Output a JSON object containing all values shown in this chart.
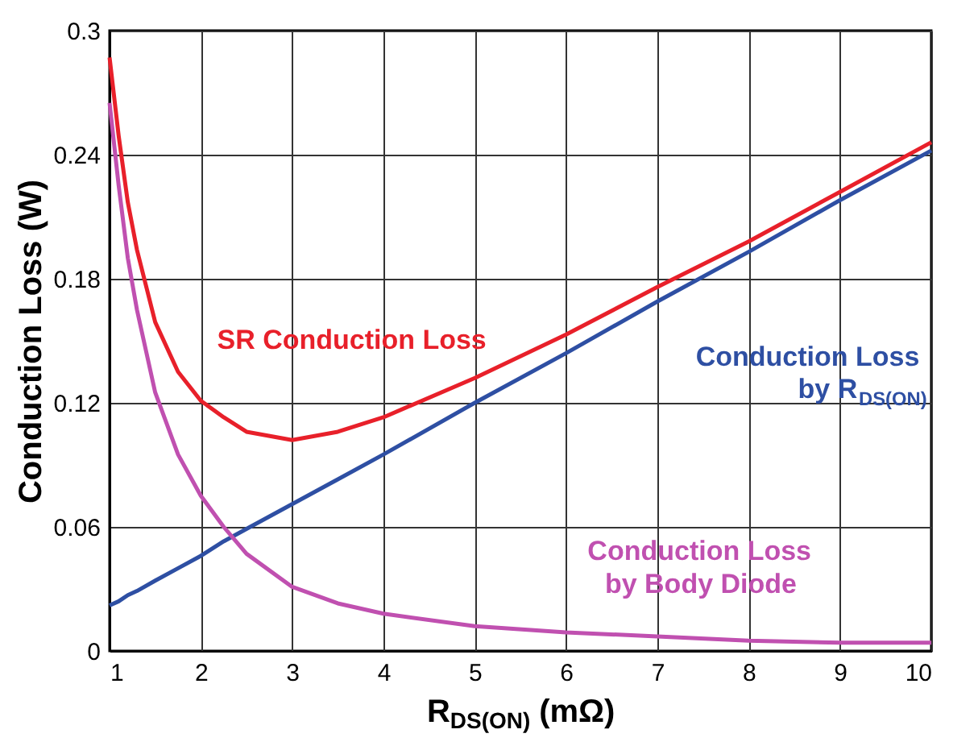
{
  "chart_data": {
    "type": "line",
    "xlabel": "R$_{DS(ON)}$ (mΩ)",
    "ylabel": "Conduction Loss (W)",
    "x": [
      1,
      1.1,
      1.2,
      1.3,
      1.5,
      1.75,
      2,
      2.25,
      2.5,
      3,
      3.5,
      4,
      5,
      6,
      7,
      8,
      9,
      10
    ],
    "series": [
      {
        "name": "SR Conduction Loss",
        "color": "#e8202a",
        "values": [
          0.287,
          0.249,
          0.217,
          0.194,
          0.159,
          0.135,
          0.121,
          0.113,
          0.106,
          0.102,
          0.106,
          0.113,
          0.132,
          0.153,
          0.176,
          0.198,
          0.222,
          0.246
        ]
      },
      {
        "name": "Conduction Loss\nby R$_{DS(ON)}$",
        "color": "#2e4fa3",
        "values": [
          0.022,
          0.024,
          0.027,
          0.029,
          0.034,
          0.04,
          0.046,
          0.053,
          0.059,
          0.071,
          0.083,
          0.095,
          0.12,
          0.144,
          0.169,
          0.193,
          0.218,
          0.242
        ]
      },
      {
        "name": "Conduction Loss\nby Body Diode",
        "color": "#c050b0",
        "values": [
          0.265,
          0.225,
          0.19,
          0.165,
          0.125,
          0.095,
          0.075,
          0.06,
          0.047,
          0.031,
          0.023,
          0.018,
          0.012,
          0.009,
          0.007,
          0.005,
          0.004,
          0.004
        ]
      }
    ],
    "xlim": [
      1,
      10
    ],
    "xticks": [
      1,
      2,
      3,
      4,
      5,
      6,
      7,
      8,
      9,
      10
    ],
    "ylim": [
      0,
      0.3
    ],
    "yticks": [
      0,
      0.06,
      0.12,
      0.18,
      0.24,
      0.3
    ],
    "grid": true,
    "marker": "none",
    "line_style": "solid"
  }
}
